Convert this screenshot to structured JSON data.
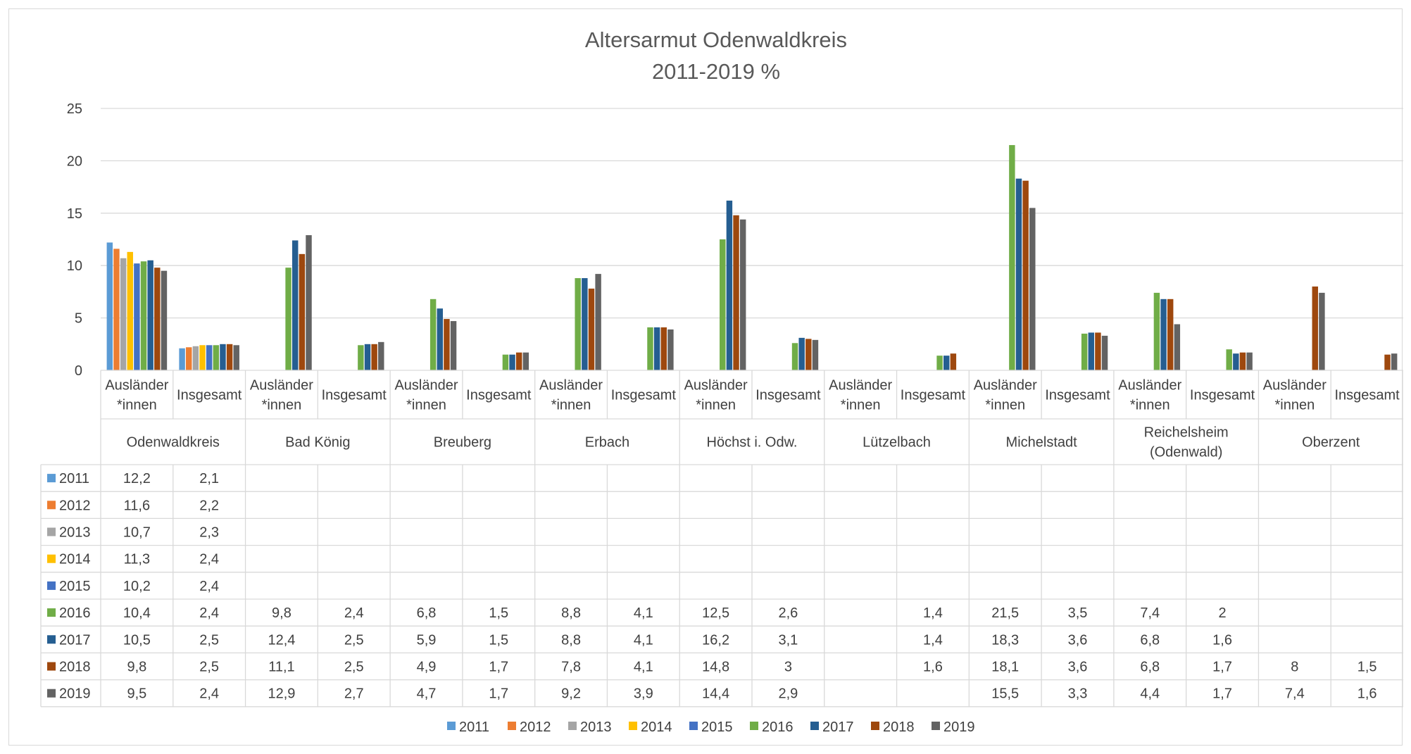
{
  "chart_data": {
    "type": "bar",
    "title": "Altersarmut Odenwaldkreis",
    "subtitle": "2011-2019 %",
    "ylim": [
      0,
      25
    ],
    "yticks": [
      0,
      5,
      10,
      15,
      20,
      25
    ],
    "grid": true,
    "legend_position": "bottom",
    "data_table": true,
    "groups": [
      "Odenwaldkreis",
      "Bad König",
      "Breuberg",
      "Erbach",
      "Höchst i. Odw.",
      "Lützelbach",
      "Michelstadt",
      "Reichelsheim (Odenwald)",
      "Oberzent"
    ],
    "sub_categories": [
      [
        "Ausländer",
        "*innen"
      ],
      [
        "Insgesamt"
      ]
    ],
    "series": [
      {
        "name": "2011",
        "color": "#5B9BD5",
        "values": [
          12.2,
          2.1,
          null,
          null,
          null,
          null,
          null,
          null,
          null,
          null,
          null,
          null,
          null,
          null,
          null,
          null,
          null,
          null
        ],
        "labels": [
          "12,2",
          "2,1",
          "",
          "",
          "",
          "",
          "",
          "",
          "",
          "",
          "",
          "",
          "",
          "",
          "",
          "",
          "",
          ""
        ]
      },
      {
        "name": "2012",
        "color": "#ED7D31",
        "values": [
          11.6,
          2.2,
          null,
          null,
          null,
          null,
          null,
          null,
          null,
          null,
          null,
          null,
          null,
          null,
          null,
          null,
          null,
          null
        ],
        "labels": [
          "11,6",
          "2,2",
          "",
          "",
          "",
          "",
          "",
          "",
          "",
          "",
          "",
          "",
          "",
          "",
          "",
          "",
          "",
          ""
        ]
      },
      {
        "name": "2013",
        "color": "#A5A5A5",
        "values": [
          10.7,
          2.3,
          null,
          null,
          null,
          null,
          null,
          null,
          null,
          null,
          null,
          null,
          null,
          null,
          null,
          null,
          null,
          null
        ],
        "labels": [
          "10,7",
          "2,3",
          "",
          "",
          "",
          "",
          "",
          "",
          "",
          "",
          "",
          "",
          "",
          "",
          "",
          "",
          "",
          ""
        ]
      },
      {
        "name": "2014",
        "color": "#FFC000",
        "values": [
          11.3,
          2.4,
          null,
          null,
          null,
          null,
          null,
          null,
          null,
          null,
          null,
          null,
          null,
          null,
          null,
          null,
          null,
          null
        ],
        "labels": [
          "11,3",
          "2,4",
          "",
          "",
          "",
          "",
          "",
          "",
          "",
          "",
          "",
          "",
          "",
          "",
          "",
          "",
          "",
          ""
        ]
      },
      {
        "name": "2015",
        "color": "#4472C4",
        "values": [
          10.2,
          2.4,
          null,
          null,
          null,
          null,
          null,
          null,
          null,
          null,
          null,
          null,
          null,
          null,
          null,
          null,
          null,
          null
        ],
        "labels": [
          "10,2",
          "2,4",
          "",
          "",
          "",
          "",
          "",
          "",
          "",
          "",
          "",
          "",
          "",
          "",
          "",
          "",
          "",
          ""
        ]
      },
      {
        "name": "2016",
        "color": "#70AD47",
        "values": [
          10.4,
          2.4,
          9.8,
          2.4,
          6.8,
          1.5,
          8.8,
          4.1,
          12.5,
          2.6,
          null,
          1.4,
          21.5,
          3.5,
          7.4,
          2,
          null,
          null
        ],
        "labels": [
          "10,4",
          "2,4",
          "9,8",
          "2,4",
          "6,8",
          "1,5",
          "8,8",
          "4,1",
          "12,5",
          "2,6",
          "",
          "1,4",
          "21,5",
          "3,5",
          "7,4",
          "2",
          "",
          ""
        ]
      },
      {
        "name": "2017",
        "color": "#255E91",
        "values": [
          10.5,
          2.5,
          12.4,
          2.5,
          5.9,
          1.5,
          8.8,
          4.1,
          16.2,
          3.1,
          null,
          1.4,
          18.3,
          3.6,
          6.8,
          1.6,
          null,
          null
        ],
        "labels": [
          "10,5",
          "2,5",
          "12,4",
          "2,5",
          "5,9",
          "1,5",
          "8,8",
          "4,1",
          "16,2",
          "3,1",
          "",
          "1,4",
          "18,3",
          "3,6",
          "6,8",
          "1,6",
          "",
          ""
        ]
      },
      {
        "name": "2018",
        "color": "#9E480E",
        "values": [
          9.8,
          2.5,
          11.1,
          2.5,
          4.9,
          1.7,
          7.8,
          4.1,
          14.8,
          3,
          null,
          1.6,
          18.1,
          3.6,
          6.8,
          1.7,
          8,
          1.5
        ],
        "labels": [
          "9,8",
          "2,5",
          "11,1",
          "2,5",
          "4,9",
          "1,7",
          "7,8",
          "4,1",
          "14,8",
          "3",
          "",
          "1,6",
          "18,1",
          "3,6",
          "6,8",
          "1,7",
          "8",
          "1,5"
        ]
      },
      {
        "name": "2019",
        "color": "#636363",
        "values": [
          9.5,
          2.4,
          12.9,
          2.7,
          4.7,
          1.7,
          9.2,
          3.9,
          14.4,
          2.9,
          null,
          null,
          15.5,
          3.3,
          4.4,
          1.7,
          7.4,
          1.6
        ],
        "labels": [
          "9,5",
          "2,4",
          "12,9",
          "2,7",
          "4,7",
          "1,7",
          "9,2",
          "3,9",
          "14,4",
          "2,9",
          "",
          "",
          "15,5",
          "3,3",
          "4,4",
          "1,7",
          "7,4",
          "1,6"
        ]
      }
    ]
  }
}
